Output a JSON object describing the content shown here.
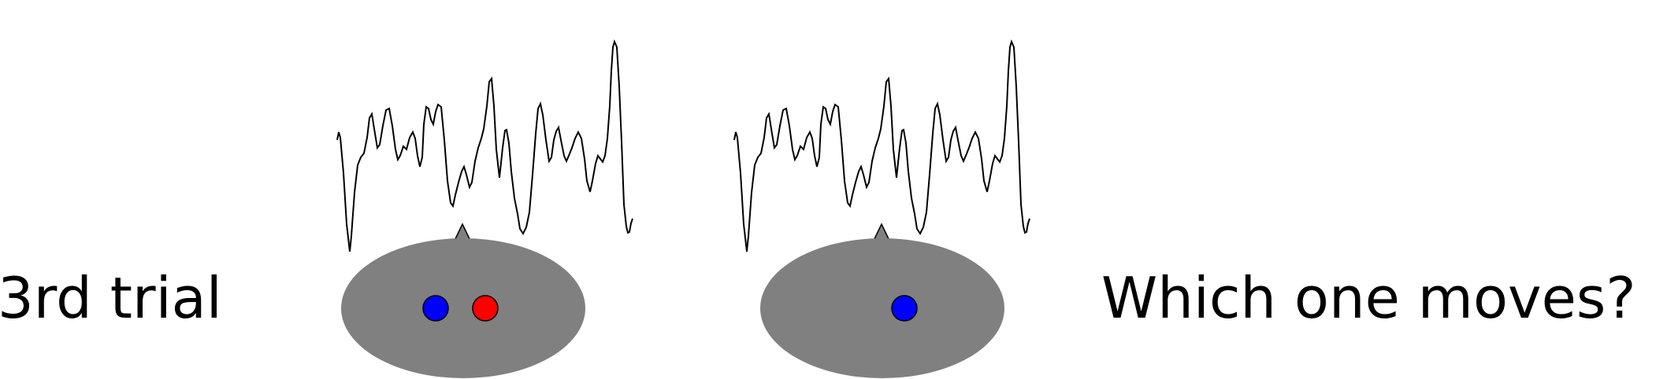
{
  "trial_label": "3rd trial",
  "question_label": "Which one moves?",
  "colors": {
    "background": "#ffffff",
    "head": "#808080",
    "waveform": "#000000",
    "dot_blue": "#0000ff",
    "dot_red": "#ff0000",
    "dot_outline": "#000000"
  },
  "panels": [
    {
      "name": "left",
      "dots": [
        "blue",
        "red"
      ]
    },
    {
      "name": "right",
      "dots": [
        "blue"
      ]
    }
  ]
}
